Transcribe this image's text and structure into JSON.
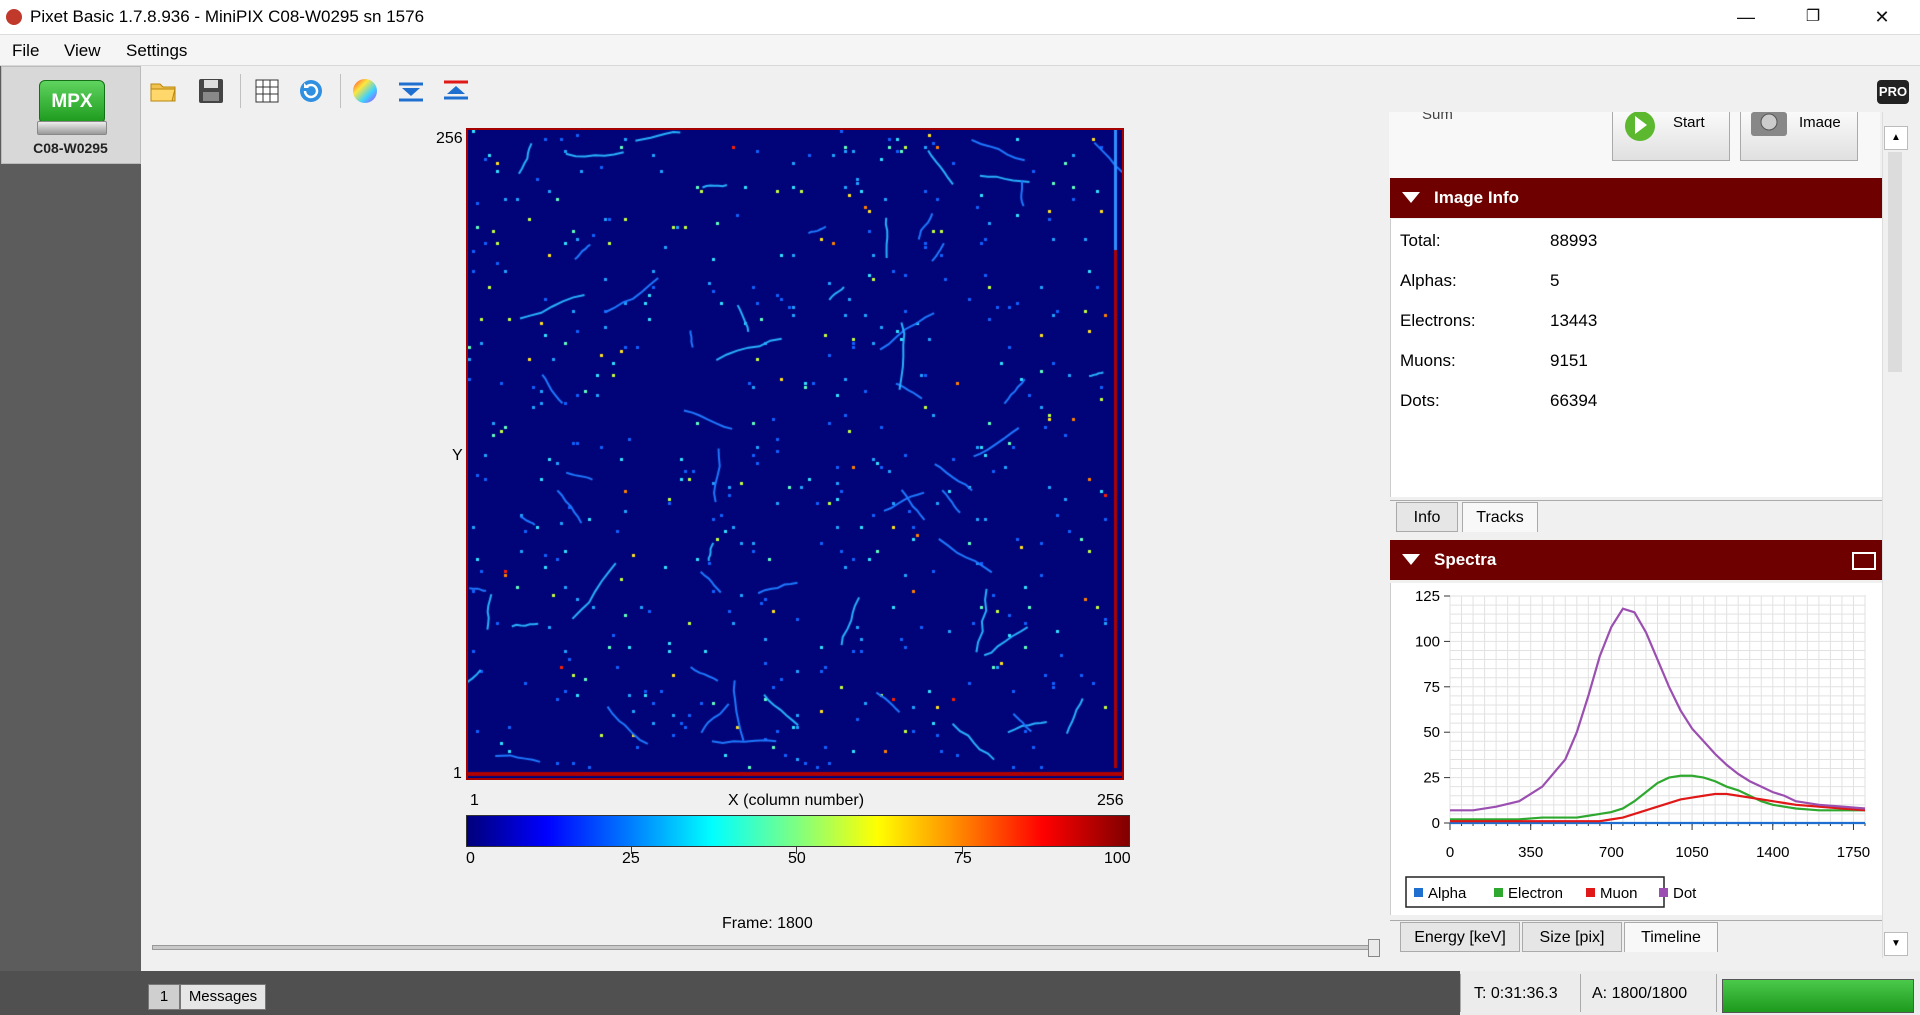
{
  "window": {
    "title": "Pixet Basic 1.7.8.936 - MiniPIX C08-W0295 sn 1576",
    "controls": [
      "—",
      "❐",
      "✕"
    ]
  },
  "menu": [
    "File",
    "View",
    "Settings"
  ],
  "device": {
    "logo_text": "MPX",
    "name": "C08-W0295"
  },
  "toolbar": {
    "pro_label": "PRO"
  },
  "image": {
    "y_label": "Y",
    "y_top": "256",
    "y_bottom": "1",
    "x_left": "1",
    "x_right": "256",
    "x_label": "X (column number)",
    "colorbar_ticks": [
      "0",
      "25",
      "50",
      "75",
      "100"
    ],
    "frame_label": "Frame: 1800"
  },
  "top_partial": {
    "sum_label": "Sum",
    "start_label": "Start",
    "image_label": "Image"
  },
  "image_info": {
    "title": "Image Info",
    "rows": [
      {
        "key": "Total:",
        "value": "88993"
      },
      {
        "key": "Alphas:",
        "value": "5"
      },
      {
        "key": "Electrons:",
        "value": "13443"
      },
      {
        "key": "Muons:",
        "value": "9151"
      },
      {
        "key": "Dots:",
        "value": "66394"
      }
    ],
    "tabs": [
      "Info",
      "Tracks"
    ],
    "active_tab": "Tracks"
  },
  "spectra": {
    "title": "Spectra",
    "tabs": [
      "Energy [keV]",
      "Size [pix]",
      "Timeline"
    ],
    "active_tab": "Timeline"
  },
  "chart_data": {
    "type": "line",
    "title": "",
    "xlabel": "",
    "ylabel": "",
    "xlim": [
      0,
      1800
    ],
    "ylim": [
      0,
      125
    ],
    "x_ticks": [
      "0",
      "350",
      "700",
      "1050",
      "1400",
      "1750"
    ],
    "y_ticks": [
      "125",
      "100",
      "75",
      "50",
      "25",
      "0"
    ],
    "grid": true,
    "legend_position": "bottom",
    "x": [
      0,
      100,
      200,
      300,
      400,
      500,
      550,
      600,
      650,
      700,
      750,
      800,
      850,
      900,
      950,
      1000,
      1050,
      1100,
      1150,
      1200,
      1250,
      1300,
      1350,
      1400,
      1450,
      1500,
      1600,
      1700,
      1800
    ],
    "series": [
      {
        "name": "Alpha",
        "color": "#1f6fd1",
        "values": [
          0,
          0,
          0,
          0,
          0,
          0,
          0,
          0,
          0,
          0,
          0,
          0,
          0,
          0,
          0,
          0,
          0,
          0,
          0,
          0,
          0,
          0,
          0,
          0,
          0,
          0,
          0,
          0,
          0
        ]
      },
      {
        "name": "Electron",
        "color": "#2ea82e",
        "values": [
          2,
          2,
          2,
          2,
          3,
          3,
          3,
          4,
          5,
          6,
          8,
          12,
          17,
          22,
          25,
          26,
          26,
          25,
          23,
          20,
          18,
          15,
          12,
          10,
          9,
          8,
          7,
          7,
          7
        ]
      },
      {
        "name": "Muon",
        "color": "#e01818",
        "values": [
          1,
          1,
          1,
          1,
          1,
          1,
          1,
          1,
          1,
          2,
          3,
          5,
          7,
          9,
          11,
          13,
          14,
          15,
          16,
          16,
          15,
          14,
          13,
          12,
          11,
          10,
          9,
          8,
          7
        ]
      },
      {
        "name": "Dot",
        "color": "#9b4fb0",
        "values": [
          7,
          7,
          9,
          12,
          20,
          35,
          50,
          70,
          92,
          108,
          118,
          116,
          105,
          90,
          75,
          62,
          52,
          45,
          38,
          32,
          27,
          23,
          20,
          17,
          15,
          12,
          10,
          9,
          8
        ]
      }
    ]
  },
  "status": {
    "messages_count": "1",
    "messages_label": "Messages",
    "time": "T: 0:31:36.3",
    "acquisitions": "A: 1800/1800",
    "progress": 1.0
  },
  "colors": {
    "accent_header": "#6e0000",
    "detector_bg": "#010478",
    "progress": "#2fb12f"
  }
}
